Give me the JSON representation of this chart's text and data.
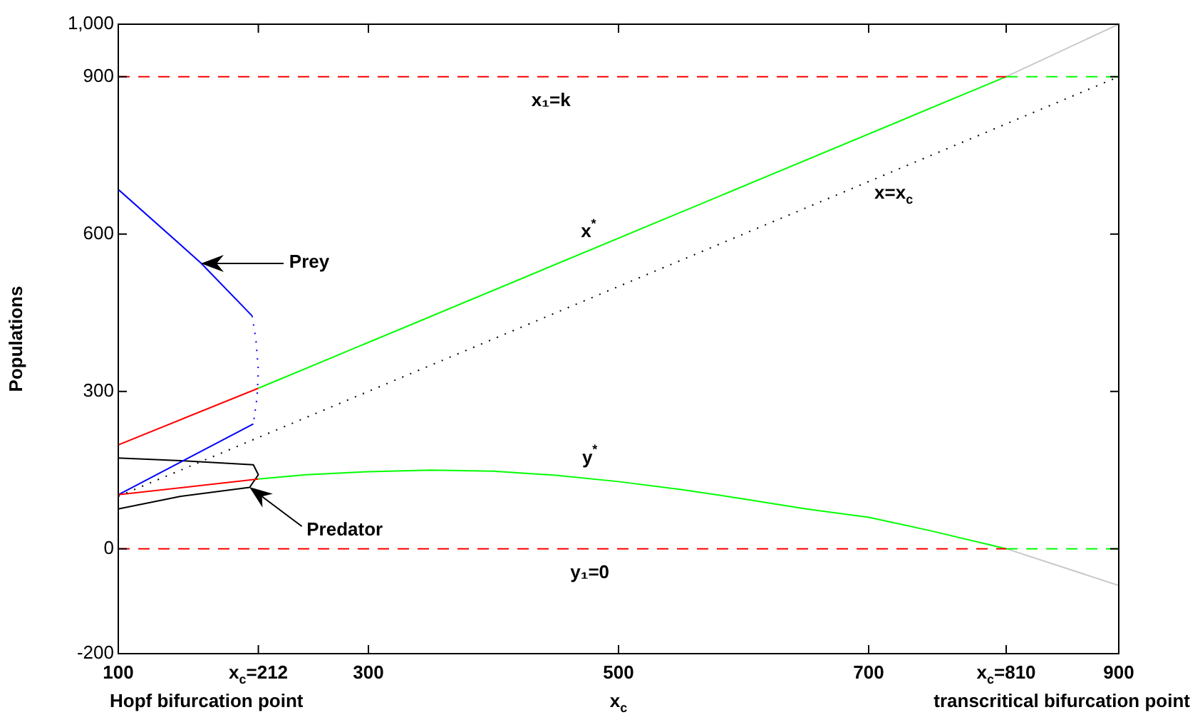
{
  "chart_data": {
    "type": "line",
    "xlabel": "x$_{c}$",
    "ylabel": "Populations",
    "xlim": [
      100,
      900
    ],
    "ylim": [
      -200,
      1000
    ],
    "xticks": [
      100,
      {
        "value": 212,
        "label": "x$_{c}$=212"
      },
      300,
      500,
      700,
      {
        "value": 810,
        "label": "x$_{c}$=810"
      },
      900
    ],
    "yticks": [
      -200,
      0,
      300,
      600,
      900,
      {
        "value": 1000,
        "label": "1,000"
      }
    ],
    "grid": false,
    "legend": false,
    "marker": "none",
    "series": [
      {
        "color": "#ff0000",
        "line_style": "dashed",
        "x": [
          100,
          810
        ],
        "values": [
          900,
          900
        ]
      },
      {
        "color": "#00ff00",
        "line_style": "dashed",
        "x": [
          810,
          900
        ],
        "values": [
          900,
          900
        ]
      },
      {
        "color": "#ff0000",
        "line_style": "dashed",
        "x": [
          100,
          810
        ],
        "values": [
          0,
          0
        ]
      },
      {
        "color": "#00ff00",
        "line_style": "dashed",
        "x": [
          810,
          900
        ],
        "values": [
          0,
          0
        ]
      },
      {
        "color": "#ff0000",
        "line_style": "solid",
        "x": [
          100,
          212
        ],
        "values": [
          198,
          306
        ]
      },
      {
        "color": "#00ff00",
        "line_style": "solid",
        "x": [
          212,
          810
        ],
        "values": [
          306,
          900
        ]
      },
      {
        "color": "#c8c8c8",
        "line_style": "solid",
        "x": [
          810,
          900
        ],
        "values": [
          900,
          1000
        ]
      },
      {
        "color": "#000000",
        "line_style": "dotted",
        "x": [
          100,
          900
        ],
        "values": [
          100,
          900
        ]
      },
      {
        "color": "#ff0000",
        "line_style": "solid",
        "x": [
          100,
          212
        ],
        "values": [
          103,
          133
        ]
      },
      {
        "color": "#00ff00",
        "line_style": "solid",
        "x": [
          212,
          250,
          300,
          350,
          400,
          450,
          500,
          550,
          600,
          650,
          700,
          750,
          810
        ],
        "values": [
          133,
          141,
          147,
          150,
          148,
          140,
          128,
          113,
          95,
          76,
          60,
          34,
          0
        ]
      },
      {
        "color": "#c8c8c8",
        "line_style": "solid",
        "x": [
          810,
          900
        ],
        "values": [
          0,
          -70
        ]
      },
      {
        "color": "#0000ff",
        "line_style": "solid",
        "x": [
          100,
          166,
          207
        ],
        "values": [
          685,
          545,
          444
        ]
      },
      {
        "color": "#0000ff",
        "line_style": "dotted",
        "x": [
          207,
          210,
          212,
          211,
          208
        ],
        "values": [
          444,
          400,
          340,
          290,
          238
        ]
      },
      {
        "color": "#0000ff",
        "line_style": "solid",
        "x": [
          208,
          100
        ],
        "values": [
          238,
          103
        ]
      },
      {
        "color": "#000000",
        "line_style": "solid",
        "x": [
          100,
          150,
          208,
          212,
          205,
          150,
          100
        ],
        "values": [
          173,
          168,
          160,
          141,
          117,
          100,
          76
        ]
      }
    ],
    "annotations": [
      {
        "text": "x₁=k",
        "x": 446,
        "y": 900
      },
      {
        "text": "x$^{*}$",
        "x": 476,
        "y": 568
      },
      {
        "text": "x=x$_{c}$",
        "x": 720,
        "y": 720
      },
      {
        "text": "y$^{*}$",
        "x": 477,
        "y": 134
      },
      {
        "text": "y₁=0",
        "x": 477,
        "y": 0
      },
      "Prey",
      "Predator",
      "Hopf bifurcation point",
      "transcritical bifurcation point"
    ]
  }
}
